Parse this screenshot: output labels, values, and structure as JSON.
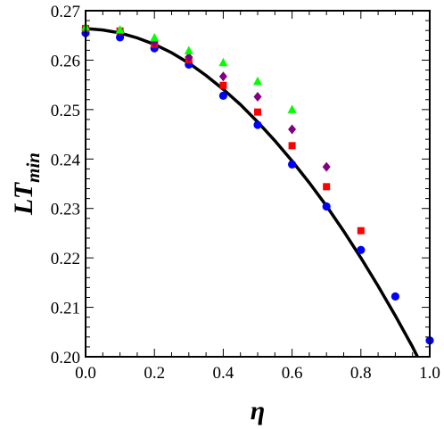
{
  "chart_data": {
    "type": "scatter",
    "xlabel": "η",
    "ylabel_main": "LT",
    "ylabel_sub": "min",
    "xlim": [
      0.0,
      1.0
    ],
    "ylim": [
      0.2,
      0.27
    ],
    "x_ticks": [
      "0.0",
      "0.2",
      "0.4",
      "0.6",
      "0.8",
      "1.0"
    ],
    "y_ticks": [
      "0.20",
      "0.21",
      "0.22",
      "0.23",
      "0.24",
      "0.25",
      "0.26",
      "0.27"
    ],
    "grid": false,
    "legend": "none",
    "curve": {
      "color": "#000000",
      "x": [
        0.0,
        0.05,
        0.1,
        0.15,
        0.2,
        0.25,
        0.3,
        0.35,
        0.4,
        0.45,
        0.5,
        0.55,
        0.6,
        0.65,
        0.7,
        0.75,
        0.8,
        0.85,
        0.9,
        0.95,
        1.0
      ],
      "y": [
        0.2664,
        0.2661,
        0.2655,
        0.2645,
        0.2632,
        0.2615,
        0.2594,
        0.2569,
        0.2541,
        0.251,
        0.2475,
        0.2437,
        0.2396,
        0.2352,
        0.2305,
        0.2254,
        0.22,
        0.2143,
        0.2083,
        0.202,
        0.195
      ]
    },
    "series": [
      {
        "marker": "circle",
        "color": "#0000ff",
        "x": [
          0.0,
          0.1,
          0.2,
          0.3,
          0.4,
          0.5,
          0.6,
          0.7,
          0.8,
          0.9,
          1.0
        ],
        "y": [
          0.2655,
          0.2646,
          0.2624,
          0.2591,
          0.2528,
          0.2469,
          0.2389,
          0.2304,
          0.2216,
          0.2122,
          0.2033
        ]
      },
      {
        "marker": "square",
        "color": "#ff0000",
        "x": [
          0.0,
          0.1,
          0.2,
          0.3,
          0.4,
          0.5,
          0.6,
          0.7,
          0.8
        ],
        "y": [
          0.2664,
          0.2659,
          0.2632,
          0.2601,
          0.2549,
          0.2495,
          0.2427,
          0.2344,
          0.2255
        ]
      },
      {
        "marker": "diamond",
        "color": "#800080",
        "x": [
          0.0,
          0.1,
          0.2,
          0.3,
          0.4,
          0.5,
          0.6,
          0.7
        ],
        "y": [
          0.2665,
          0.2658,
          0.2636,
          0.2606,
          0.2567,
          0.2526,
          0.246,
          0.2384
        ]
      },
      {
        "marker": "triangle",
        "color": "#00ff00",
        "x": [
          0.0,
          0.1,
          0.2,
          0.3,
          0.4,
          0.5,
          0.6
        ],
        "y": [
          0.2667,
          0.2661,
          0.2645,
          0.2619,
          0.2595,
          0.2557,
          0.25
        ]
      }
    ]
  }
}
